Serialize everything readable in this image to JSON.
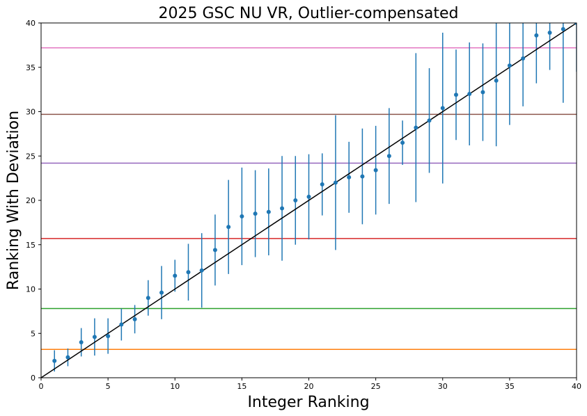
{
  "chart_data": {
    "type": "scatter",
    "title": "2025 GSC NU VR, Outlier-compensated",
    "xlabel": "Integer Ranking",
    "ylabel": "Ranking With Deviation",
    "xlim": [
      0,
      40
    ],
    "ylim": [
      0,
      40
    ],
    "xticks": [
      0,
      5,
      10,
      15,
      20,
      25,
      30,
      35,
      40
    ],
    "yticks": [
      0,
      5,
      10,
      15,
      20,
      25,
      30,
      35,
      40
    ],
    "grid": false,
    "series": [
      {
        "kind": "errorbar",
        "color": "#1f77b4",
        "points": [
          {
            "x": 1,
            "y": 1.9,
            "err": 1.2
          },
          {
            "x": 2,
            "y": 2.3,
            "err": 1.0
          },
          {
            "x": 3,
            "y": 4.0,
            "err": 1.6
          },
          {
            "x": 4,
            "y": 4.6,
            "err": 2.1
          },
          {
            "x": 5,
            "y": 4.7,
            "err": 2.0
          },
          {
            "x": 6,
            "y": 6.0,
            "err": 1.8
          },
          {
            "x": 7,
            "y": 6.6,
            "err": 1.6
          },
          {
            "x": 8,
            "y": 9.0,
            "err": 2.0
          },
          {
            "x": 9,
            "y": 9.6,
            "err": 3.0
          },
          {
            "x": 10,
            "y": 11.5,
            "err": 1.8
          },
          {
            "x": 11,
            "y": 11.9,
            "err": 3.2
          },
          {
            "x": 12,
            "y": 12.1,
            "err": 4.2
          },
          {
            "x": 13,
            "y": 14.4,
            "err": 4.0
          },
          {
            "x": 14,
            "y": 17.0,
            "err": 5.3
          },
          {
            "x": 15,
            "y": 18.2,
            "err": 5.5
          },
          {
            "x": 16,
            "y": 18.5,
            "err": 4.9
          },
          {
            "x": 17,
            "y": 18.7,
            "err": 4.9
          },
          {
            "x": 18,
            "y": 19.1,
            "err": 5.9
          },
          {
            "x": 19,
            "y": 20.0,
            "err": 5.0
          },
          {
            "x": 20,
            "y": 20.4,
            "err": 4.8
          },
          {
            "x": 21,
            "y": 21.8,
            "err": 3.5
          },
          {
            "x": 22,
            "y": 22.0,
            "err": 7.6
          },
          {
            "x": 23,
            "y": 22.6,
            "err": 4.0
          },
          {
            "x": 24,
            "y": 22.7,
            "err": 5.4
          },
          {
            "x": 25,
            "y": 23.4,
            "err": 5.0
          },
          {
            "x": 26,
            "y": 25.0,
            "err": 5.4
          },
          {
            "x": 27,
            "y": 26.5,
            "err": 2.5
          },
          {
            "x": 28,
            "y": 28.2,
            "err": 8.4
          },
          {
            "x": 29,
            "y": 29.0,
            "err": 5.9
          },
          {
            "x": 30,
            "y": 30.4,
            "err": 8.5
          },
          {
            "x": 31,
            "y": 31.9,
            "err": 5.1
          },
          {
            "x": 32,
            "y": 32.0,
            "err": 5.8
          },
          {
            "x": 33,
            "y": 32.2,
            "err": 5.5
          },
          {
            "x": 34,
            "y": 33.5,
            "err": 7.4
          },
          {
            "x": 35,
            "y": 35.2,
            "err": 6.7
          },
          {
            "x": 36,
            "y": 36.0,
            "err": 5.4
          },
          {
            "x": 37,
            "y": 38.6,
            "err": 5.4
          },
          {
            "x": 38,
            "y": 38.9,
            "err": 4.2
          },
          {
            "x": 39,
            "y": 39.3,
            "err": 8.3
          },
          {
            "x": 40,
            "y": 40.0,
            "err": 5.5
          }
        ]
      }
    ],
    "reference_line": {
      "x": [
        0,
        40
      ],
      "y": [
        0,
        40
      ],
      "color": "#000000"
    },
    "hlines": [
      {
        "y": 3.2,
        "color": "#ff7f0e"
      },
      {
        "y": 7.8,
        "color": "#2ca02c"
      },
      {
        "y": 15.7,
        "color": "#d62728"
      },
      {
        "y": 24.2,
        "color": "#9467bd"
      },
      {
        "y": 29.7,
        "color": "#8c564b"
      },
      {
        "y": 37.2,
        "color": "#e377c2"
      }
    ]
  }
}
